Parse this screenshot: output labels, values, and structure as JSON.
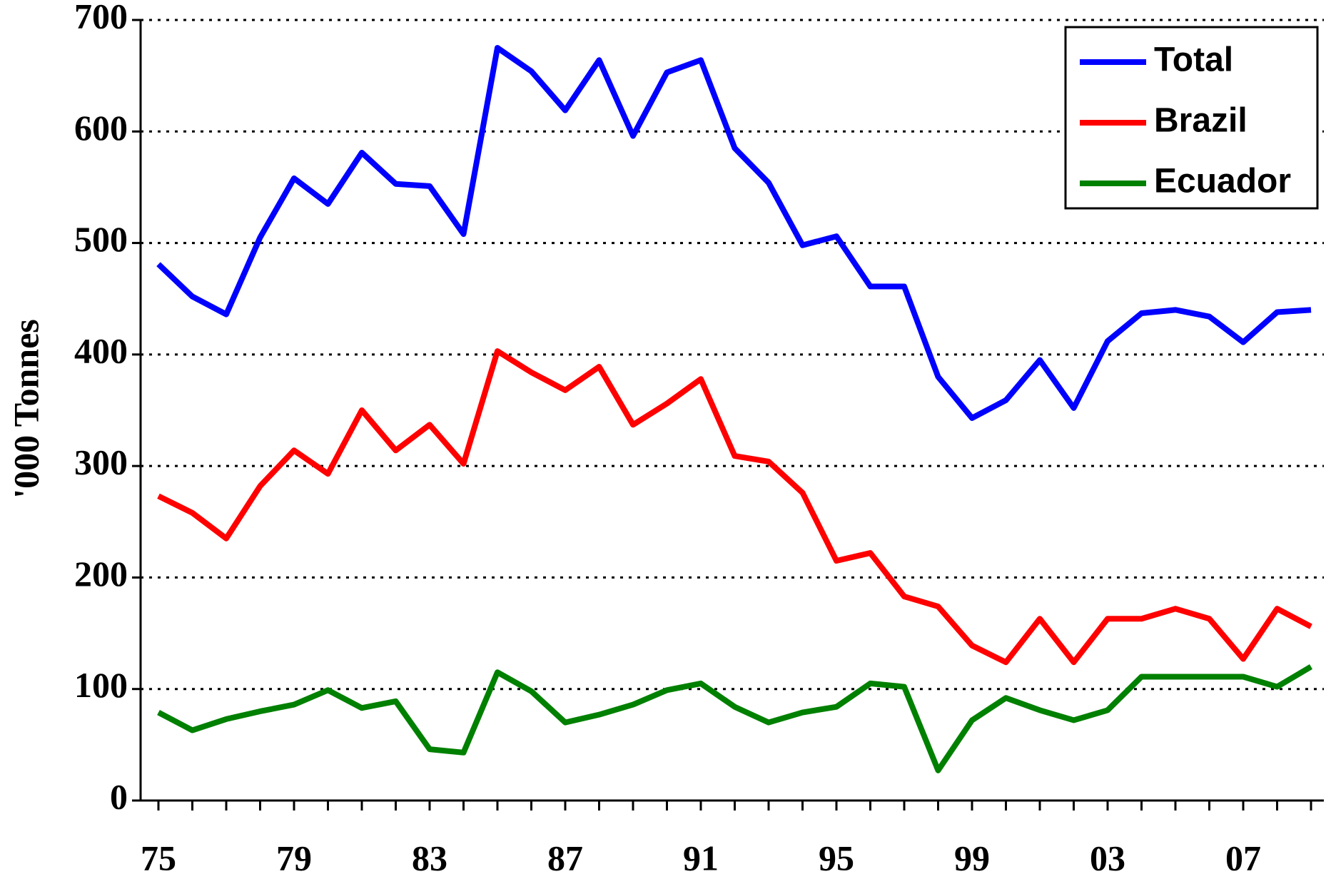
{
  "chart_data": {
    "type": "line",
    "ylabel": "'000 Tonnes",
    "categories": [
      "75",
      null,
      null,
      null,
      "79",
      null,
      null,
      null,
      "83",
      null,
      null,
      null,
      "87",
      null,
      null,
      null,
      "91",
      null,
      null,
      null,
      "95",
      null,
      null,
      null,
      "99",
      null,
      null,
      null,
      "03",
      null,
      null,
      null,
      "07",
      null,
      null
    ],
    "series": [
      {
        "name": "Total",
        "color": "#0000ff",
        "values": [
          481,
          452,
          436,
          505,
          558,
          535,
          581,
          553,
          551,
          508,
          675,
          654,
          619,
          664,
          596,
          653,
          664,
          585,
          554,
          498,
          506,
          461,
          461,
          380,
          343,
          359,
          395,
          352,
          412,
          437,
          440,
          434,
          411,
          438,
          440
        ]
      },
      {
        "name": "Brazil",
        "color": "#ff0000",
        "values": [
          273,
          258,
          235,
          282,
          314,
          293,
          350,
          314,
          337,
          302,
          403,
          384,
          368,
          389,
          337,
          356,
          378,
          309,
          304,
          276,
          215,
          222,
          183,
          174,
          139,
          124,
          163,
          124,
          163,
          163,
          172,
          163,
          127,
          172,
          156
        ]
      },
      {
        "name": "Ecuador",
        "color": "#008000",
        "values": [
          79,
          63,
          73,
          80,
          86,
          99,
          83,
          89,
          46,
          43,
          115,
          98,
          70,
          77,
          86,
          99,
          105,
          84,
          70,
          79,
          84,
          105,
          102,
          27,
          72,
          92,
          81,
          72,
          81,
          111,
          111,
          111,
          111,
          102,
          120
        ]
      }
    ],
    "ylim": [
      0,
      700
    ],
    "yticks": [
      0,
      100,
      200,
      300,
      400,
      500,
      600,
      700
    ],
    "grid": true,
    "legend": "upper right"
  }
}
